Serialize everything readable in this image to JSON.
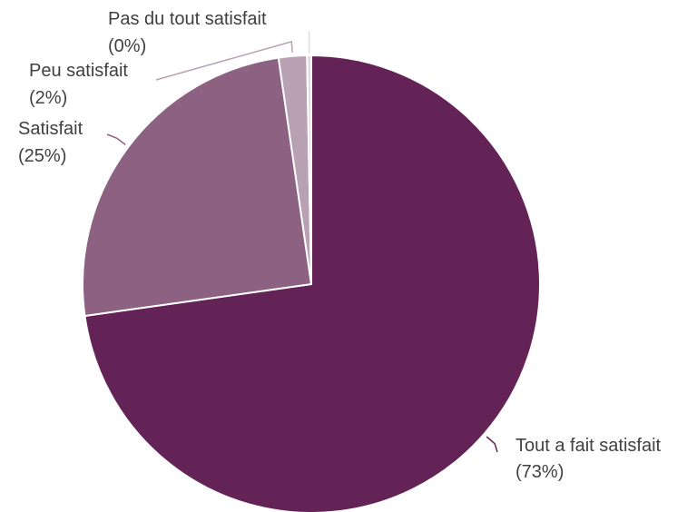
{
  "chart_data": {
    "type": "pie",
    "categories": [
      "Tout a fait satisfait",
      "Satisfait",
      "Peu satisfait",
      "Pas du tout satisfait"
    ],
    "values": [
      73,
      25,
      2,
      0.3
    ],
    "value_labels": [
      "(73%)",
      "(25%)",
      "(2%)",
      "(0%)"
    ],
    "colors": [
      "#632356",
      "#8c6181",
      "#b8a1b3",
      "#e3d9e1"
    ],
    "legend": "none",
    "start": "12 o'clock, clockwise"
  }
}
